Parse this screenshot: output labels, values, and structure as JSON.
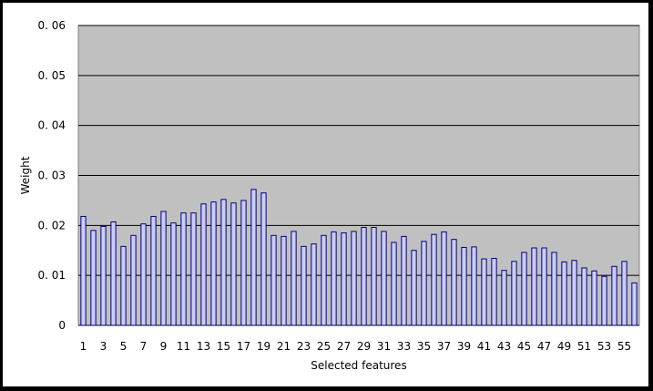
{
  "chart_data": {
    "type": "bar",
    "xlabel": "Selected features",
    "ylabel": "Weight",
    "ylim": [
      0,
      0.06
    ],
    "yticks": [
      "0",
      "0. 01",
      "0. 02",
      "0. 03",
      "0. 04",
      "0. 05",
      "0. 06"
    ],
    "grid": true,
    "plot_background": "#c0c0c0",
    "bar_fill": "#ccccff",
    "bar_stroke": "#00007f",
    "categories": [
      1,
      2,
      3,
      4,
      5,
      6,
      7,
      8,
      9,
      10,
      11,
      12,
      13,
      14,
      15,
      16,
      17,
      18,
      19,
      20,
      21,
      22,
      23,
      24,
      25,
      26,
      27,
      28,
      29,
      30,
      31,
      32,
      33,
      34,
      35,
      36,
      37,
      38,
      39,
      40,
      41,
      42,
      43,
      44,
      45,
      46,
      47,
      48,
      49,
      50,
      51,
      52,
      53,
      54,
      55,
      56
    ],
    "xtick_labels": [
      "1",
      "",
      "3",
      "",
      "5",
      "",
      "7",
      "",
      "9",
      "",
      "11",
      "",
      "13",
      "",
      "15",
      "",
      "17",
      "",
      "19",
      "",
      "21",
      "",
      "23",
      "",
      "25",
      "",
      "27",
      "",
      "29",
      "",
      "31",
      "",
      "33",
      "",
      "35",
      "",
      "37",
      "",
      "39",
      "",
      "41",
      "",
      "43",
      "",
      "45",
      "",
      "47",
      "",
      "49",
      "",
      "51",
      "",
      "53",
      "",
      "55",
      ""
    ],
    "values": [
      0.0218,
      0.019,
      0.0198,
      0.0207,
      0.0158,
      0.018,
      0.0203,
      0.0218,
      0.0228,
      0.0205,
      0.0225,
      0.0225,
      0.0243,
      0.0247,
      0.0252,
      0.0245,
      0.025,
      0.0272,
      0.0265,
      0.018,
      0.0178,
      0.0188,
      0.0158,
      0.0163,
      0.018,
      0.0187,
      0.0185,
      0.0188,
      0.0196,
      0.0196,
      0.0188,
      0.0166,
      0.0178,
      0.015,
      0.0168,
      0.0182,
      0.0187,
      0.0172,
      0.0156,
      0.0157,
      0.0133,
      0.0134,
      0.011,
      0.0128,
      0.0146,
      0.0155,
      0.0155,
      0.0146,
      0.0127,
      0.013,
      0.0115,
      0.0109,
      0.0098,
      0.0118,
      0.0128,
      0.0085
    ]
  }
}
